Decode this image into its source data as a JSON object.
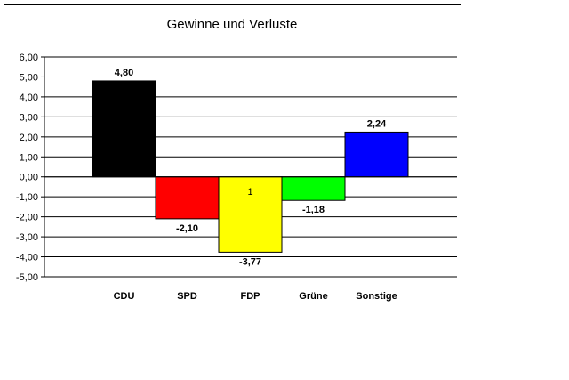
{
  "chart_data": {
    "type": "bar",
    "title": "Gewinne und Verluste",
    "xlabel": "",
    "ylabel": "",
    "categories": [
      "CDU",
      "SPD",
      "FDP",
      "Grüne",
      "Sonstige"
    ],
    "values": [
      4.8,
      -2.1,
      -3.77,
      -1.18,
      2.24
    ],
    "value_labels": [
      "4,80",
      "-2,10",
      "-3,77",
      "-1,18",
      "2,24"
    ],
    "bar_colors": [
      "#000000",
      "#ff0000",
      "#ffff00",
      "#00ff00",
      "#0000ff"
    ],
    "inner_labels": [
      "",
      "",
      "1",
      "",
      ""
    ],
    "ylim": [
      -5,
      6
    ],
    "yticks": [
      6,
      5,
      4,
      3,
      2,
      1,
      0,
      -1,
      -2,
      -3,
      -4,
      -5
    ],
    "ytick_labels": [
      "6,00",
      "5,00",
      "4,00",
      "3,00",
      "2,00",
      "1,00",
      "0,00",
      "-1,00",
      "-2,00",
      "-3,00",
      "-4,00",
      "-5,00"
    ],
    "grid": true,
    "legend": "none"
  }
}
